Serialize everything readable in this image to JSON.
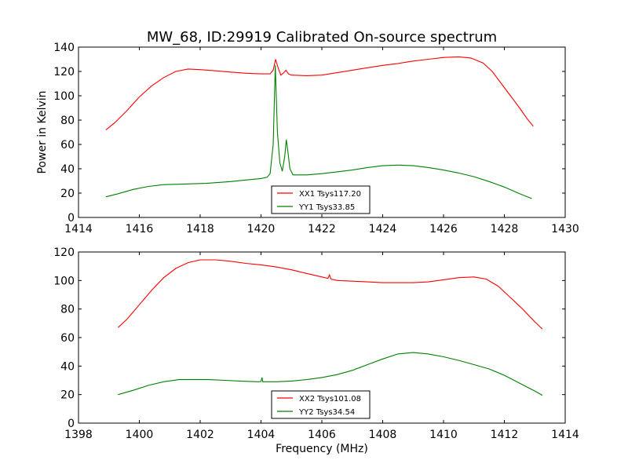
{
  "figure": {
    "title": "MW_68, ID:29919 Calibrated On-source spectrum"
  },
  "chart_data": [
    {
      "type": "line",
      "title": "MW_68, ID:29919 Calibrated On-source spectrum",
      "xlabel": "",
      "ylabel": "Power in Kelvin",
      "xlim": [
        1414,
        1430
      ],
      "ylim": [
        0,
        140
      ],
      "xticks": [
        "1414",
        "1416",
        "1418",
        "1420",
        "1422",
        "1424",
        "1426",
        "1428",
        "1430"
      ],
      "yticks": [
        "0",
        "20",
        "40",
        "60",
        "80",
        "100",
        "120",
        "140"
      ],
      "grid": false,
      "legend": "lower-center",
      "series": [
        {
          "name": "XX1 Tsys117.20",
          "color": "#ff0000",
          "points": [
            [
              1414.9,
              72
            ],
            [
              1415.2,
              78
            ],
            [
              1415.6,
              88
            ],
            [
              1416.0,
              99
            ],
            [
              1416.4,
              108
            ],
            [
              1416.8,
              115
            ],
            [
              1417.2,
              120
            ],
            [
              1417.6,
              122
            ],
            [
              1418.0,
              121.5
            ],
            [
              1418.5,
              120.5
            ],
            [
              1419.0,
              119.5
            ],
            [
              1419.5,
              118.5
            ],
            [
              1420.0,
              118
            ],
            [
              1420.3,
              118
            ],
            [
              1420.4,
              121
            ],
            [
              1420.48,
              130
            ],
            [
              1420.55,
              124
            ],
            [
              1420.65,
              117
            ],
            [
              1420.75,
              119
            ],
            [
              1420.82,
              121
            ],
            [
              1420.9,
              118
            ],
            [
              1421.0,
              117
            ],
            [
              1421.5,
              116.5
            ],
            [
              1422.0,
              117
            ],
            [
              1422.5,
              119
            ],
            [
              1423.0,
              121
            ],
            [
              1423.5,
              123
            ],
            [
              1424.0,
              125
            ],
            [
              1424.5,
              126.5
            ],
            [
              1425.0,
              128.5
            ],
            [
              1425.5,
              130
            ],
            [
              1426.0,
              131.5
            ],
            [
              1426.5,
              132
            ],
            [
              1426.9,
              131
            ],
            [
              1427.3,
              127
            ],
            [
              1427.6,
              120
            ],
            [
              1427.9,
              110
            ],
            [
              1428.2,
              100
            ],
            [
              1428.5,
              90
            ],
            [
              1428.75,
              81
            ],
            [
              1428.95,
              75
            ]
          ]
        },
        {
          "name": "YY1 Tsys33.85",
          "color": "#008000",
          "points": [
            [
              1414.9,
              17
            ],
            [
              1415.3,
              19.5
            ],
            [
              1415.8,
              23
            ],
            [
              1416.3,
              25.5
            ],
            [
              1416.8,
              27
            ],
            [
              1417.5,
              27.5
            ],
            [
              1418.2,
              28
            ],
            [
              1419.0,
              29.5
            ],
            [
              1419.6,
              31
            ],
            [
              1420.0,
              32
            ],
            [
              1420.2,
              33
            ],
            [
              1420.3,
              36
            ],
            [
              1420.4,
              60
            ],
            [
              1420.47,
              125
            ],
            [
              1420.54,
              70
            ],
            [
              1420.62,
              45
            ],
            [
              1420.7,
              38
            ],
            [
              1420.78,
              50
            ],
            [
              1420.83,
              64
            ],
            [
              1420.88,
              55
            ],
            [
              1420.95,
              40
            ],
            [
              1421.05,
              35
            ],
            [
              1421.5,
              35
            ],
            [
              1422.0,
              36
            ],
            [
              1422.5,
              37.5
            ],
            [
              1423.0,
              39
            ],
            [
              1423.5,
              41
            ],
            [
              1424.0,
              42.5
            ],
            [
              1424.5,
              43
            ],
            [
              1425.0,
              42.5
            ],
            [
              1425.5,
              41
            ],
            [
              1426.0,
              39
            ],
            [
              1426.5,
              36.5
            ],
            [
              1427.0,
              33.5
            ],
            [
              1427.5,
              29.5
            ],
            [
              1428.0,
              25
            ],
            [
              1428.5,
              19.5
            ],
            [
              1428.9,
              15.5
            ]
          ]
        }
      ]
    },
    {
      "type": "line",
      "title": "",
      "xlabel": "Frequency (MHz)",
      "ylabel": "",
      "xlim": [
        1398,
        1414
      ],
      "ylim": [
        0,
        120
      ],
      "xticks": [
        "1398",
        "1400",
        "1402",
        "1404",
        "1406",
        "1408",
        "1410",
        "1412",
        "1414"
      ],
      "yticks": [
        "0",
        "20",
        "40",
        "60",
        "80",
        "100",
        "120"
      ],
      "grid": false,
      "legend": "lower-center",
      "series": [
        {
          "name": "XX2 Tsys101.08",
          "color": "#ff0000",
          "points": [
            [
              1399.3,
              67
            ],
            [
              1399.6,
              73
            ],
            [
              1400.0,
              83
            ],
            [
              1400.4,
              93
            ],
            [
              1400.8,
              102
            ],
            [
              1401.2,
              108.5
            ],
            [
              1401.6,
              112.5
            ],
            [
              1402.0,
              114.5
            ],
            [
              1402.5,
              114.5
            ],
            [
              1403.0,
              113.5
            ],
            [
              1403.5,
              112
            ],
            [
              1404.0,
              111
            ],
            [
              1404.5,
              109.5
            ],
            [
              1405.0,
              107.5
            ],
            [
              1405.5,
              105
            ],
            [
              1406.0,
              102.5
            ],
            [
              1406.2,
              101.5
            ],
            [
              1406.25,
              104
            ],
            [
              1406.3,
              101
            ],
            [
              1406.5,
              100
            ],
            [
              1407.0,
              99.5
            ],
            [
              1407.5,
              99
            ],
            [
              1408.0,
              98.5
            ],
            [
              1408.5,
              98.5
            ],
            [
              1409.0,
              98.5
            ],
            [
              1409.5,
              99
            ],
            [
              1410.0,
              100.5
            ],
            [
              1410.5,
              102
            ],
            [
              1411.0,
              102.5
            ],
            [
              1411.4,
              101
            ],
            [
              1411.8,
              96
            ],
            [
              1412.2,
              88
            ],
            [
              1412.6,
              80
            ],
            [
              1413.0,
              71
            ],
            [
              1413.25,
              66
            ]
          ]
        },
        {
          "name": "YY2 Tsys34.54",
          "color": "#008000",
          "points": [
            [
              1399.3,
              20
            ],
            [
              1399.8,
              23
            ],
            [
              1400.3,
              26.5
            ],
            [
              1400.8,
              29
            ],
            [
              1401.3,
              30.5
            ],
            [
              1401.8,
              30.5
            ],
            [
              1402.3,
              30.5
            ],
            [
              1402.8,
              30
            ],
            [
              1403.3,
              29.5
            ],
            [
              1403.9,
              29
            ],
            [
              1404.0,
              29.2
            ],
            [
              1404.03,
              32
            ],
            [
              1404.06,
              29
            ],
            [
              1404.5,
              29
            ],
            [
              1405.0,
              29.5
            ],
            [
              1405.5,
              30.5
            ],
            [
              1406.0,
              32
            ],
            [
              1406.5,
              34
            ],
            [
              1407.0,
              37
            ],
            [
              1407.5,
              41
            ],
            [
              1408.0,
              45
            ],
            [
              1408.5,
              48.5
            ],
            [
              1409.0,
              49.5
            ],
            [
              1409.5,
              48.5
            ],
            [
              1410.0,
              46.5
            ],
            [
              1410.5,
              44
            ],
            [
              1411.0,
              41
            ],
            [
              1411.5,
              38
            ],
            [
              1412.0,
              33.5
            ],
            [
              1412.5,
              28
            ],
            [
              1413.0,
              22.5
            ],
            [
              1413.25,
              19.5
            ]
          ]
        }
      ]
    }
  ]
}
